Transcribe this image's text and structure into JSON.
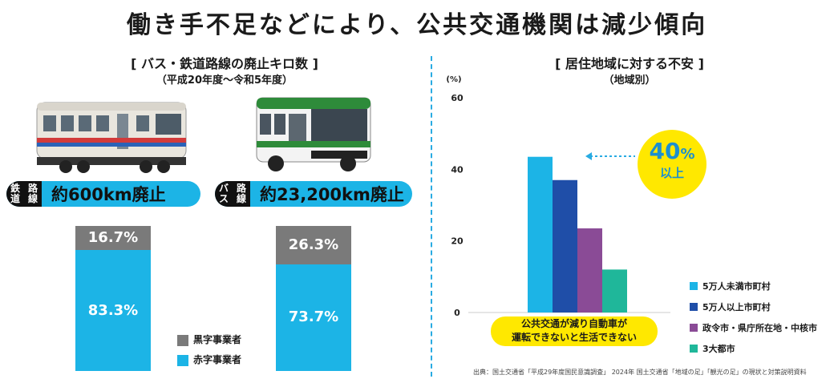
{
  "title": "働き手不足などにより、公共交通機関は減少傾向",
  "left_chart": {
    "title": "[ バス・鉄道路線の廃止キロ数 ]",
    "period": "（平成20年度～令和5年度）",
    "rail_tag": {
      "label_line1": "鉄道",
      "label_line2": "路線",
      "value": "約600km廃止"
    },
    "bus_tag": {
      "label_line1": "バス",
      "label_line2": "路線",
      "value": "約23,200km廃止"
    },
    "legend": {
      "black": "黒字事業者",
      "red": "赤字事業者"
    }
  },
  "right_chart": {
    "title": "[ 居住地域に対する不安 ]",
    "subtitle": "（地域別）",
    "unit": "(%)",
    "callout_line1": "公共交通が減り自動車が",
    "callout_line2": "運転できないと生活できない",
    "bubble_value": "40",
    "bubble_unit": "%",
    "bubble_suffix": "以上"
  },
  "source": "出典：国土交通省「平成29年度国民意識調査」 2024年 国土交通省「地域の足」「観光の足」の現状と対策説明資料",
  "colors": {
    "cyan": "#1cb4e6",
    "gray": "#7a7a7a",
    "navy": "#1f4ea8",
    "purple": "#8a4b96",
    "teal": "#1fb79a",
    "yellow": "#ffe800"
  },
  "chart_data": [
    {
      "type": "bar",
      "categories": [
        "鉄道路線",
        "バス路線"
      ],
      "series": [
        {
          "name": "黒字事業者",
          "values": [
            16.7,
            26.3
          ],
          "labels": [
            "16.7%",
            "26.3%"
          ]
        },
        {
          "name": "赤字事業者",
          "values": [
            83.3,
            73.7
          ],
          "labels": [
            "83.3%",
            "73.7%"
          ]
        }
      ],
      "stacked": true
    },
    {
      "type": "bar",
      "categories": [
        "5万人未満市町村",
        "5万人以上市町村",
        "政令市・県庁所在地・中核市",
        "3大都市"
      ],
      "values": [
        43.5,
        37,
        23.5,
        12
      ],
      "colors": [
        "#1cb4e6",
        "#1f4ea8",
        "#8a4b96",
        "#1fb79a"
      ],
      "yticks": [
        "60",
        "40",
        "20",
        "0"
      ],
      "ylim": [
        0,
        60
      ],
      "grid": false,
      "legend": "right"
    }
  ]
}
